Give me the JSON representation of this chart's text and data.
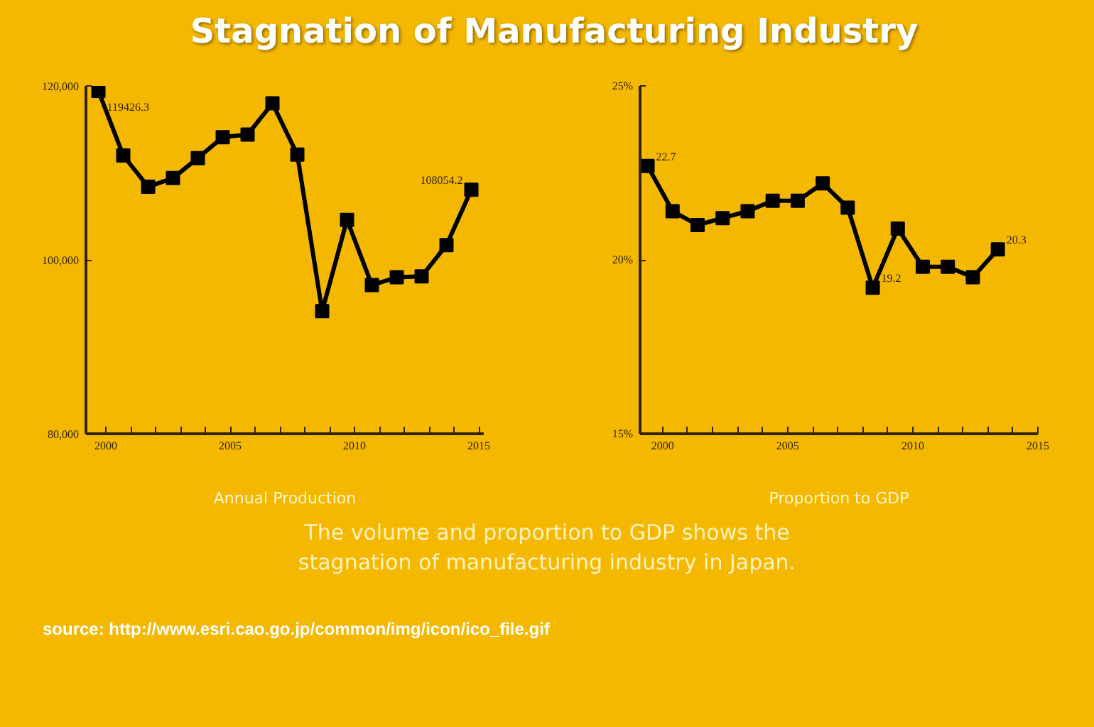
{
  "chart_data": [
    {
      "type": "line",
      "title": "Stagnation of Manufacturing Industry",
      "xlabel": "Annual Production",
      "x": [
        1999.7,
        2000.7,
        2001.7,
        2002.7,
        2003.7,
        2004.7,
        2005.7,
        2006.7,
        2007.7,
        2008.7,
        2009.7,
        2010.7,
        2011.7,
        2012.7,
        2013.7,
        2014.7
      ],
      "series": [
        {
          "color": "#000000",
          "values": [
            119426.3,
            112000,
            108400,
            109400,
            111700,
            114100,
            114400,
            118000,
            112100,
            94100,
            104600,
            97100,
            98000,
            98100,
            101700,
            108054.2
          ],
          "value_labels": [
            "119426.3",
            null,
            null,
            null,
            null,
            null,
            null,
            null,
            null,
            null,
            null,
            null,
            null,
            null,
            null,
            "108054.2"
          ]
        }
      ],
      "xlim": [
        1999.2,
        2015.2
      ],
      "xticks": [
        2000,
        2005,
        2010,
        2015
      ],
      "ylim": [
        80000,
        120000
      ],
      "yticks": [
        {
          "value": 80000,
          "label": "80,000"
        },
        {
          "value": 100000,
          "label": "100,000"
        },
        {
          "value": 120000,
          "label": "120,000"
        }
      ],
      "marker": "square",
      "grid": false
    },
    {
      "type": "line",
      "xlabel": "Proportion to GDP",
      "x": [
        1999.4,
        2000.4,
        2001.4,
        2002.4,
        2003.4,
        2004.4,
        2005.4,
        2006.4,
        2007.4,
        2008.4,
        2009.4,
        2010.4,
        2011.4,
        2012.4,
        2013.4
      ],
      "series": [
        {
          "color": "#000000",
          "values": [
            22.7,
            21.4,
            21.0,
            21.2,
            21.4,
            21.7,
            21.7,
            22.2,
            21.5,
            19.2,
            20.9,
            19.8,
            19.8,
            19.5,
            20.3
          ],
          "value_labels": [
            "22.7",
            null,
            null,
            null,
            null,
            null,
            null,
            null,
            null,
            "19.2",
            null,
            null,
            null,
            null,
            "20.3"
          ]
        }
      ],
      "xlim": [
        1999.1,
        2015.0
      ],
      "xticks": [
        2000,
        2005,
        2010,
        2015
      ],
      "ylim": [
        15,
        25
      ],
      "yticks": [
        {
          "value": 15,
          "label": "15%"
        },
        {
          "value": 20,
          "label": "20%"
        },
        {
          "value": 25,
          "label": "25%"
        }
      ],
      "marker": "square",
      "grid": false,
      "annotations": [
        "The volume and proportion to GDP shows the stagnation of manufacturing industry in Japan.",
        "source: http://www.esri.cao.go.jp/common/img/icon/ico_file.gif"
      ]
    }
  ]
}
